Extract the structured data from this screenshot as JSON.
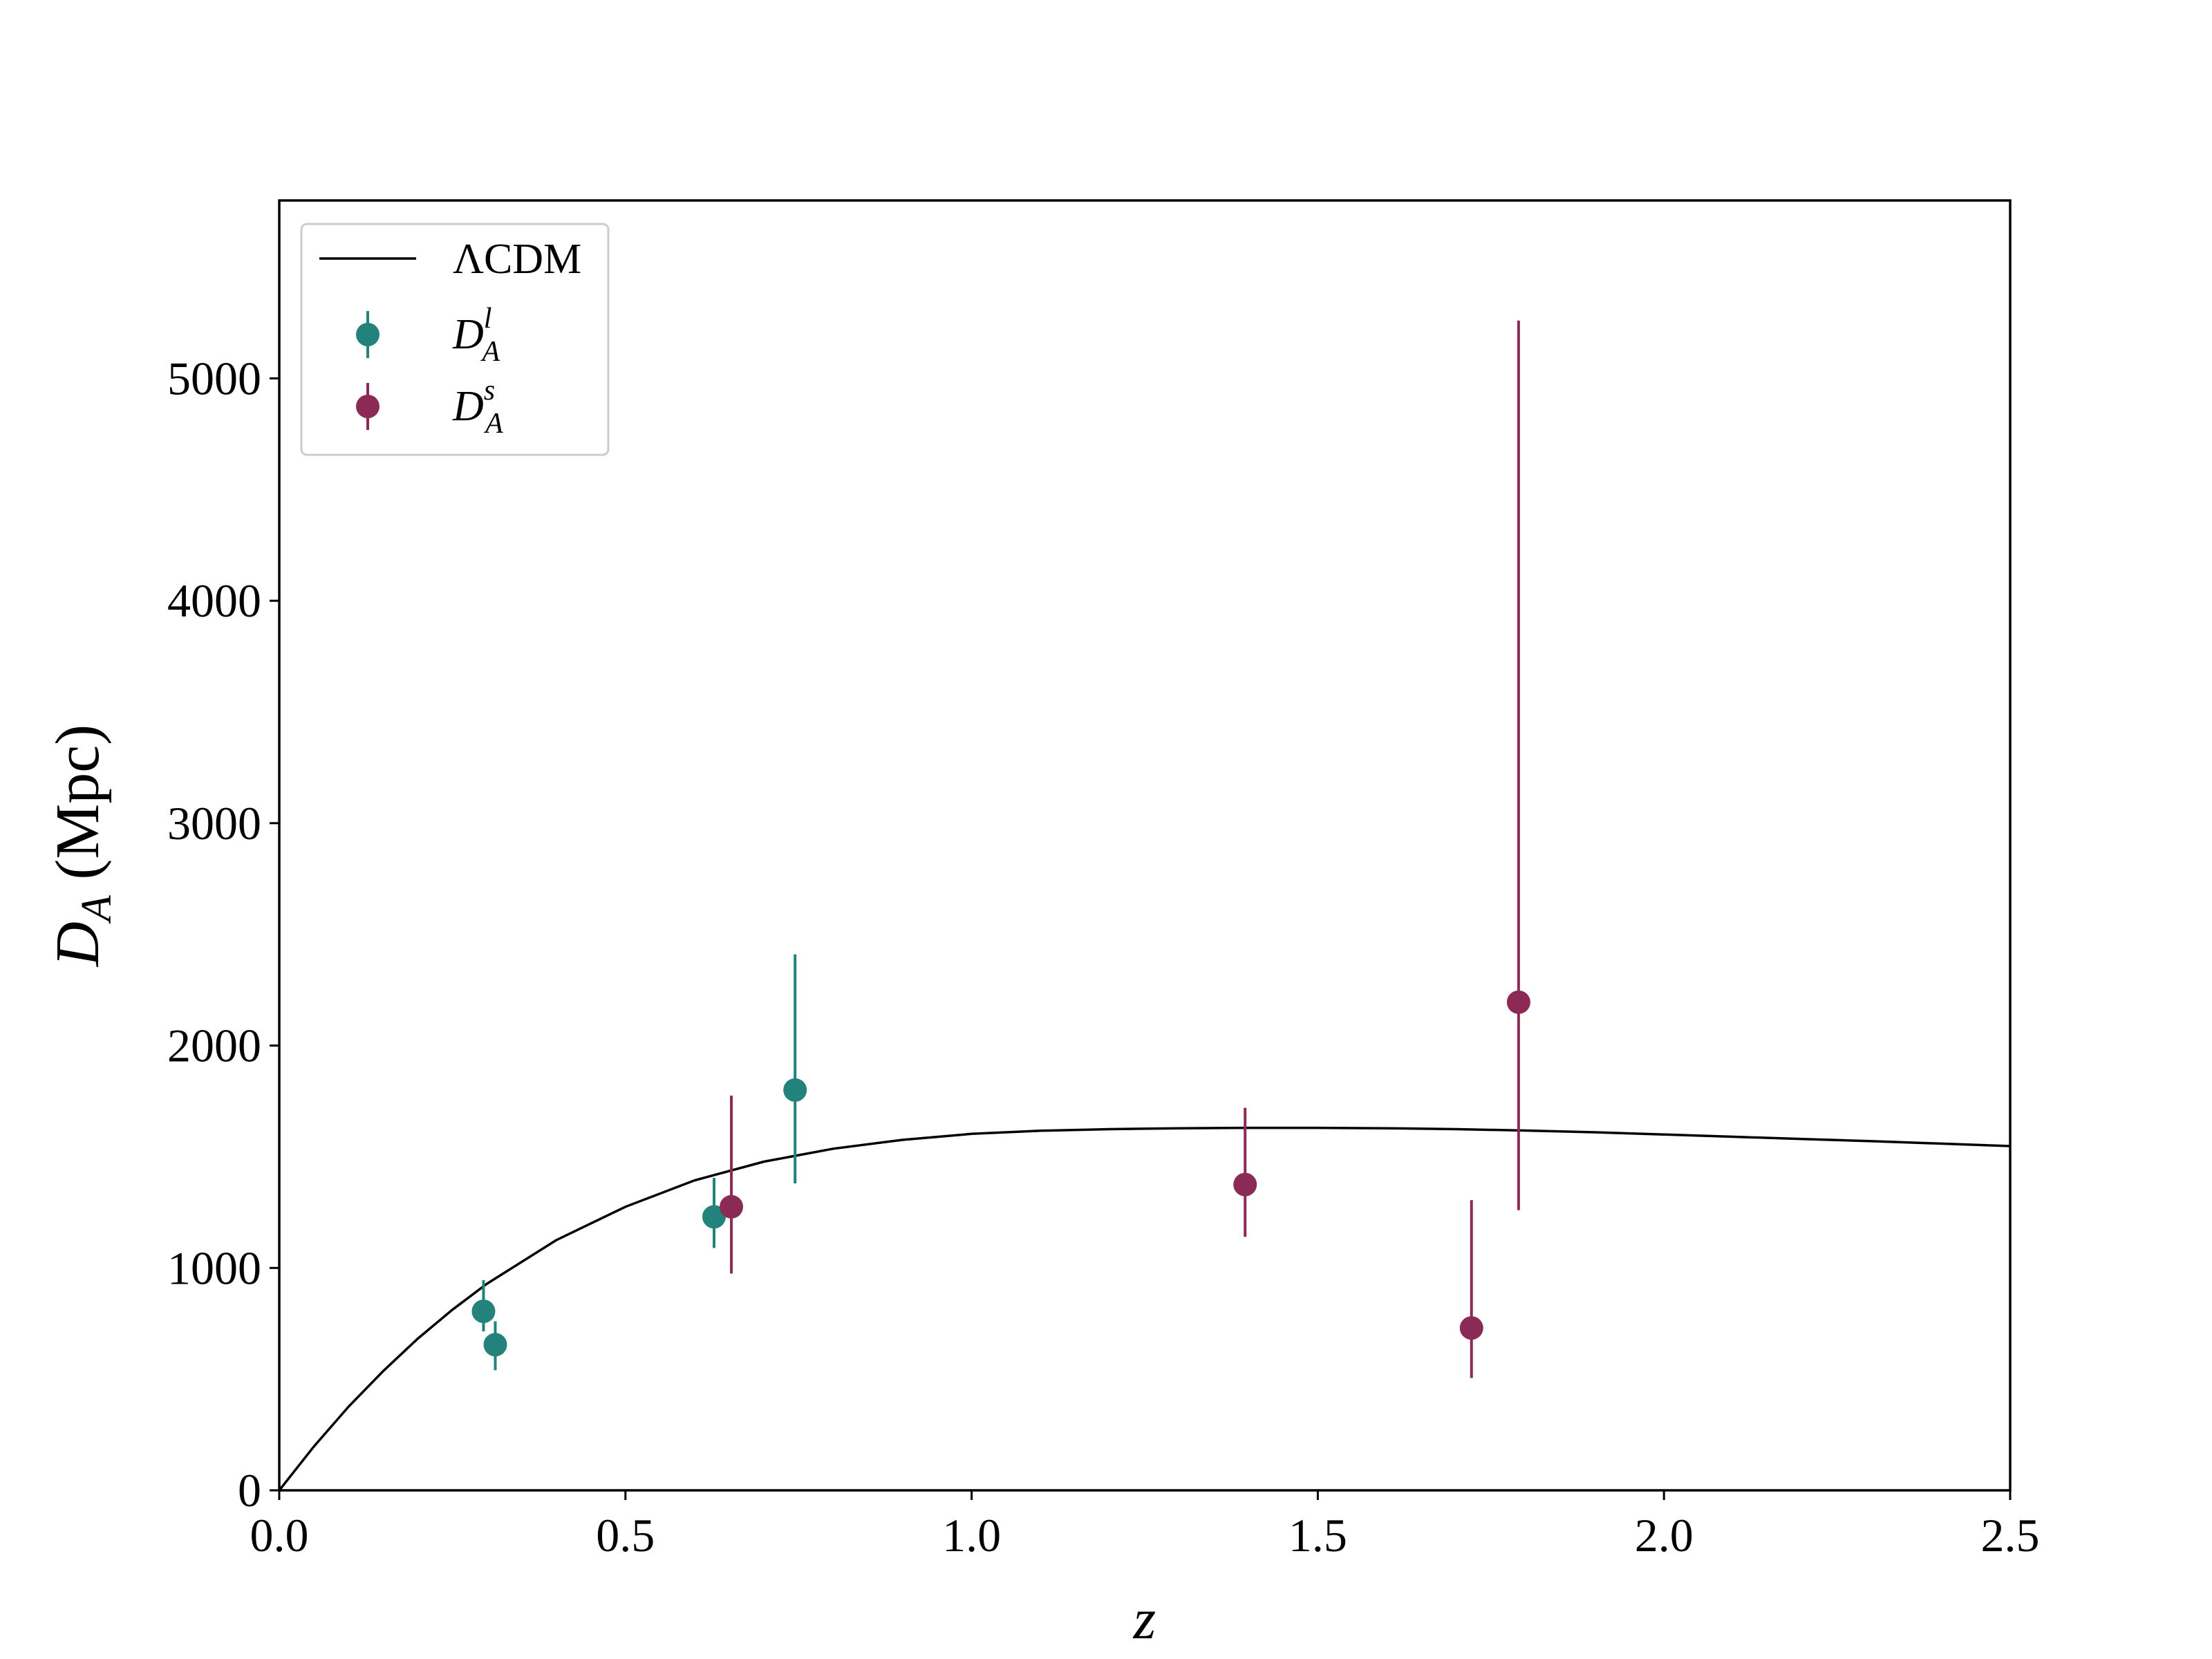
{
  "chart_data": {
    "type": "scatter",
    "xlabel": "z",
    "ylabel": {
      "main": "D",
      "sub": "A",
      "unit": "(Mpc)"
    },
    "xlim": [
      0.0,
      2.5
    ],
    "ylim": [
      0,
      5800
    ],
    "xticks": [
      0.0,
      0.5,
      1.0,
      1.5,
      2.0,
      2.5
    ],
    "xtick_labels": [
      "0.0",
      "0.5",
      "1.0",
      "1.5",
      "2.0",
      "2.5"
    ],
    "yticks": [
      0,
      1000,
      2000,
      3000,
      4000,
      5000
    ],
    "ytick_labels": [
      "0",
      "1000",
      "2000",
      "3000",
      "4000",
      "5000"
    ],
    "grid": false,
    "legend_position": "top-left",
    "model_curve": {
      "name": "ΛCDM",
      "color": "#000000",
      "x": [
        0.0,
        0.05,
        0.1,
        0.15,
        0.2,
        0.25,
        0.3,
        0.4,
        0.5,
        0.6,
        0.7,
        0.8,
        0.9,
        1.0,
        1.1,
        1.2,
        1.3,
        1.4,
        1.5,
        1.6,
        1.7,
        1.8,
        1.9,
        2.0,
        2.1,
        2.2,
        2.3,
        2.4,
        2.5
      ],
      "y": [
        0,
        197,
        376,
        536,
        682,
        812,
        929,
        1125,
        1275,
        1394,
        1478,
        1536,
        1576,
        1603,
        1617,
        1624,
        1628,
        1630,
        1630,
        1628,
        1624,
        1618,
        1610,
        1600,
        1590,
        1580,
        1570,
        1559,
        1548
      ]
    },
    "series": [
      {
        "name": {
          "main": "D",
          "sub": "A",
          "sup": "l"
        },
        "color": "#23827c",
        "points": [
          {
            "x": 0.295,
            "y": 805,
            "yerr_low": 90,
            "yerr_high": 140
          },
          {
            "x": 0.312,
            "y": 655,
            "yerr_low": 115,
            "yerr_high": 105
          },
          {
            "x": 0.628,
            "y": 1230,
            "yerr_low": 140,
            "yerr_high": 175
          },
          {
            "x": 0.745,
            "y": 1800,
            "yerr_low": 420,
            "yerr_high": 610
          }
        ]
      },
      {
        "name": {
          "main": "D",
          "sub": "A",
          "sup": "s"
        },
        "color": "#8b2a55",
        "points": [
          {
            "x": 0.653,
            "y": 1275,
            "yerr_low": 300,
            "yerr_high": 500
          },
          {
            "x": 1.395,
            "y": 1375,
            "yerr_low": 235,
            "yerr_high": 345
          },
          {
            "x": 1.722,
            "y": 730,
            "yerr_low": 225,
            "yerr_high": 575
          },
          {
            "x": 1.79,
            "y": 2195,
            "yerr_low": 935,
            "yerr_high": 3065
          }
        ]
      }
    ]
  }
}
